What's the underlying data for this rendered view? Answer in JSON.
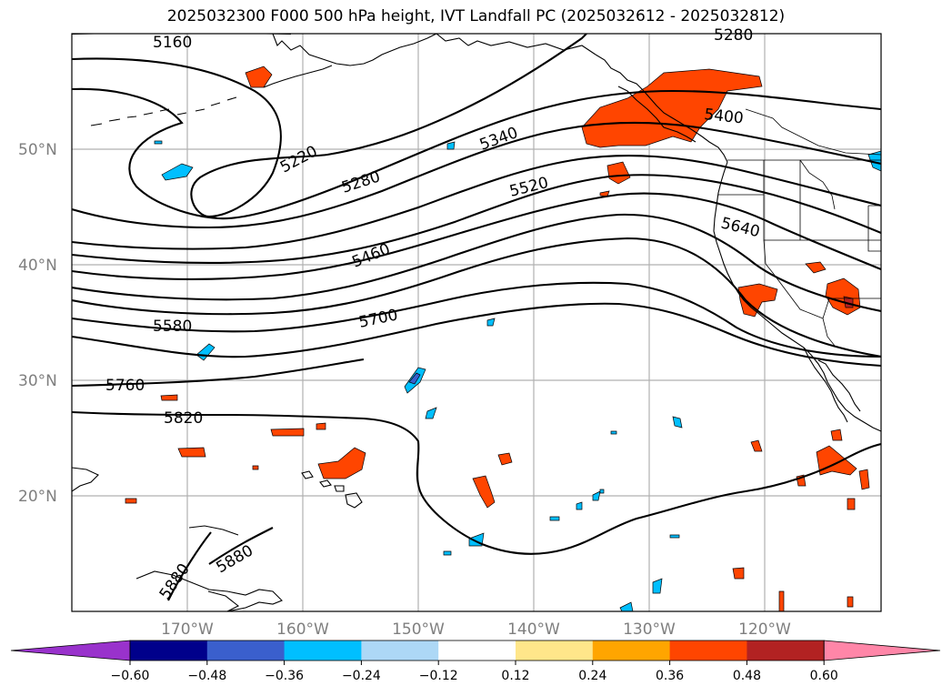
{
  "title": "2025032300 F000 500 hPa height, IVT Landfall PC (2025032612 - 2025032812)",
  "axes": {
    "lon_labels": [
      "170°W",
      "160°W",
      "150°W",
      "140°W",
      "130°W",
      "120°W"
    ],
    "lat_labels": [
      "50°N",
      "40°N",
      "30°N",
      "20°N"
    ],
    "lon_range": [
      -180,
      -110
    ],
    "lat_range": [
      10,
      60
    ],
    "grid": true
  },
  "contour_labels": [
    "5160",
    "5220",
    "5280",
    "5280",
    "5340",
    "5400",
    "5460",
    "5520",
    "5580",
    "5640",
    "5700",
    "5760",
    "5820",
    "5880",
    "5880"
  ],
  "colorbar": {
    "ticks": [
      "−0.60",
      "−0.48",
      "−0.36",
      "−0.24",
      "−0.12",
      "0.12",
      "0.24",
      "0.36",
      "0.48",
      "0.60"
    ],
    "colors": [
      "#9932cc",
      "#00008b",
      "#3a5fcd",
      "#00bfff",
      "#add8f6",
      "#ffffff",
      "#ffe68a",
      "#ffa500",
      "#ff4500",
      "#b22222",
      "#ff86a8"
    ]
  }
}
